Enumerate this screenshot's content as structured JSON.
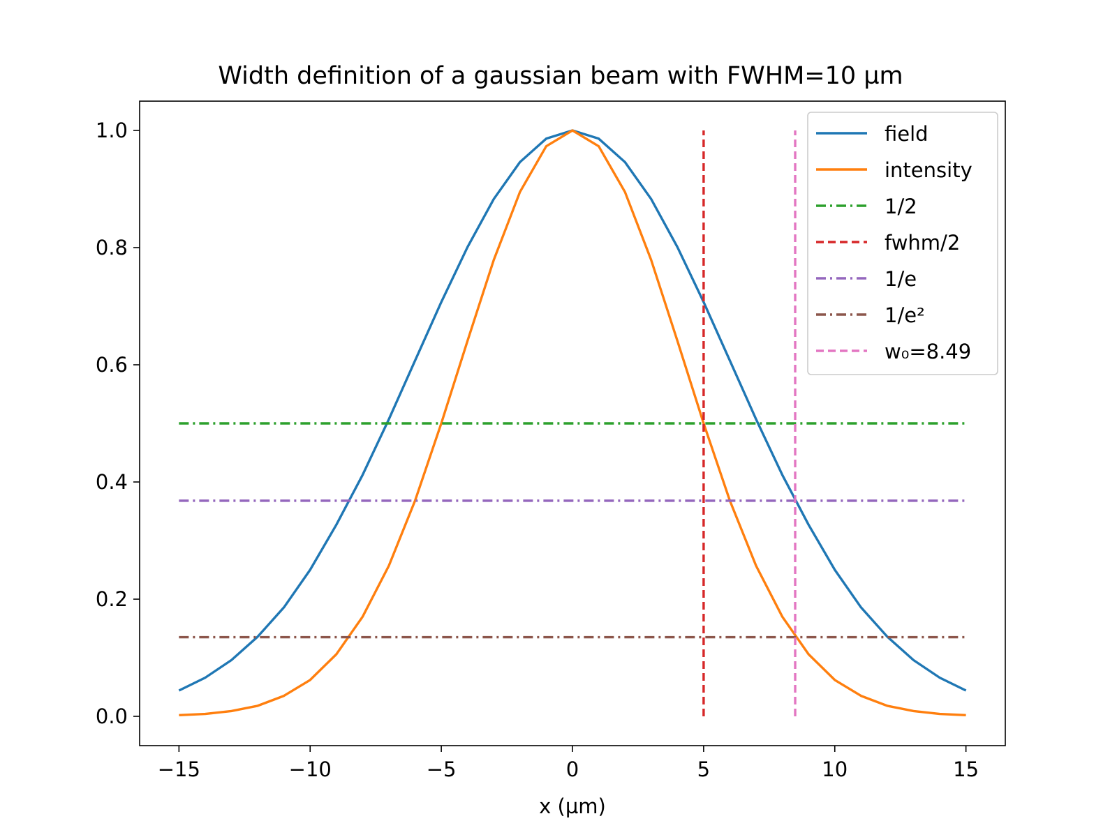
{
  "chart_data": {
    "type": "line",
    "title": "Width definition of a gaussian beam with FWHM=10 µm",
    "xlabel": "x (µm)",
    "ylabel": "",
    "xlim": [
      -16.5,
      16.5
    ],
    "ylim": [
      -0.05,
      1.05
    ],
    "x_ticks": [
      -15,
      -10,
      -5,
      0,
      5,
      10,
      15
    ],
    "x_tick_labels": [
      "−15",
      "−10",
      "−5",
      "0",
      "5",
      "10",
      "15"
    ],
    "y_ticks": [
      0.0,
      0.2,
      0.4,
      0.6,
      0.8,
      1.0
    ],
    "y_tick_labels": [
      "0.0",
      "0.2",
      "0.4",
      "0.6",
      "0.8",
      "1.0"
    ],
    "grid": false,
    "legend_position": "top-right",
    "series": [
      {
        "name": "field",
        "kind": "curve",
        "color": "#1f77b4",
        "dash": "solid",
        "x": [
          -15,
          -14,
          -13,
          -12,
          -11,
          -10,
          -9,
          -8,
          -7,
          -6,
          -5,
          -4,
          -3,
          -2,
          -1,
          0,
          1,
          2,
          3,
          4,
          5,
          6,
          7,
          8,
          9,
          10,
          11,
          12,
          13,
          14,
          15
        ],
        "y": [
          0.044,
          0.066,
          0.096,
          0.136,
          0.186,
          0.25,
          0.327,
          0.412,
          0.507,
          0.607,
          0.707,
          0.801,
          0.883,
          0.946,
          0.986,
          1.0,
          0.986,
          0.946,
          0.883,
          0.801,
          0.707,
          0.607,
          0.507,
          0.412,
          0.327,
          0.25,
          0.186,
          0.136,
          0.096,
          0.066,
          0.044
        ]
      },
      {
        "name": "intensity",
        "kind": "curve",
        "color": "#ff7f0e",
        "dash": "solid",
        "x": [
          -15,
          -14,
          -13,
          -12,
          -11,
          -10,
          -9,
          -8,
          -7,
          -6,
          -5,
          -4,
          -3,
          -2,
          -1,
          0,
          1,
          2,
          3,
          4,
          5,
          6,
          7,
          8,
          9,
          10,
          11,
          12,
          13,
          14,
          15
        ],
        "y": [
          0.002,
          0.004,
          0.009,
          0.018,
          0.035,
          0.062,
          0.106,
          0.17,
          0.257,
          0.368,
          0.5,
          0.641,
          0.779,
          0.895,
          0.973,
          1.0,
          0.973,
          0.895,
          0.779,
          0.641,
          0.5,
          0.368,
          0.257,
          0.17,
          0.106,
          0.062,
          0.035,
          0.018,
          0.009,
          0.004,
          0.002
        ]
      },
      {
        "name": "1/2",
        "kind": "hline",
        "color": "#2ca02c",
        "dash": "dashdot",
        "y": 0.5,
        "x_range": [
          -15,
          15
        ]
      },
      {
        "name": "fwhm/2",
        "kind": "vline",
        "color": "#d62728",
        "dash": "dashed",
        "x": 5,
        "y_range": [
          0,
          1
        ]
      },
      {
        "name": "1/e",
        "kind": "hline",
        "color": "#9467bd",
        "dash": "dashdot",
        "y": 0.368,
        "x_range": [
          -15,
          15
        ]
      },
      {
        "name": "1/e²",
        "kind": "hline",
        "color": "#8c564b",
        "dash": "dashdot",
        "y": 0.135,
        "x_range": [
          -15,
          15
        ]
      },
      {
        "name": "w₀=8.49",
        "kind": "vline",
        "color": "#e377c2",
        "dash": "dashed",
        "x": 8.49,
        "y_range": [
          0,
          1
        ]
      }
    ]
  }
}
